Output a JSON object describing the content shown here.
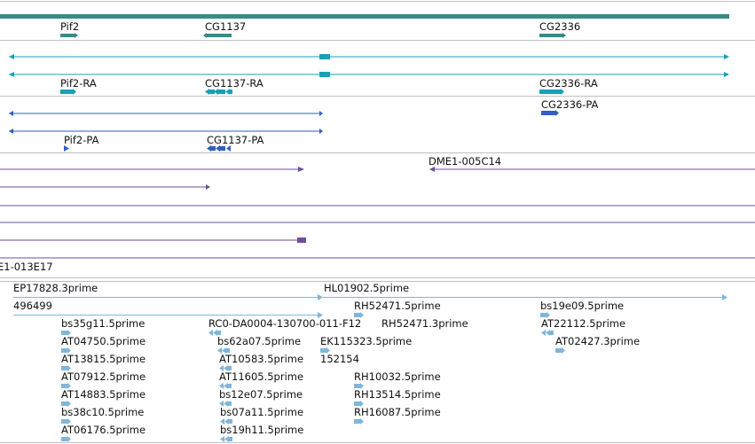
{
  "colors": {
    "gene": "#3a8a86",
    "transcript_ra": "#1aa0b4",
    "protein_pa": "#2f5fc0",
    "clone": "#6e4d9e",
    "est": "#7fb6dc",
    "separator": "#c0c0c0"
  },
  "tracks": {
    "genes": [
      "Pif2",
      "CG1137",
      "CG2336"
    ],
    "transcripts": [
      "Pif2-RA",
      "CG1137-RA",
      "CG2336-RA"
    ],
    "proteins": [
      "CG2336-PA",
      "Pif2-PA",
      "CG1137-PA"
    ],
    "clones": [
      "DME1-005C14",
      "E1-013E17"
    ],
    "ests": [
      "EP17828.3prime",
      "HL01902.5prime",
      "496499",
      "RH52471.5prime",
      "bs19e09.5prime",
      "bs35g11.5prime",
      "RC0-DA0004-130700-011-F12",
      "RH52471.3prime",
      "AT22112.5prime",
      "AT04750.5prime",
      "bs62a07.5prime",
      "EK115323.5prime",
      "AT02427.3prime",
      "AT13815.5prime",
      "AT10583.5prime",
      "152154",
      "AT07912.5prime",
      "AT11605.5prime",
      "RH10032.5prime",
      "AT14883.5prime",
      "bs12e07.5prime",
      "RH13514.5prime",
      "bs38c10.5prime",
      "bs07a11.5prime",
      "RH16087.5prime",
      "AT06176.5prime",
      "bs19h11.5prime"
    ]
  }
}
